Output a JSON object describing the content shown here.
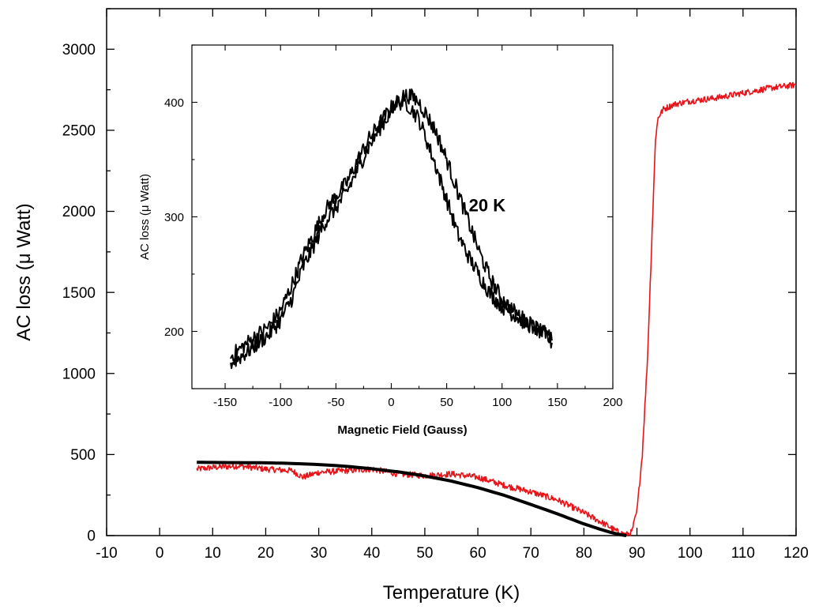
{
  "chart_data": [
    {
      "type": "line",
      "xlabel": "Temperature (K)",
      "ylabel": "AC loss (μ Watt)",
      "xlim": [
        -10,
        120
      ],
      "ylim": [
        0,
        3250
      ],
      "xticks": [
        "-10",
        "0",
        "10",
        "20",
        "30",
        "40",
        "50",
        "60",
        "70",
        "80",
        "90",
        "100",
        "110",
        "120"
      ],
      "yticks": [
        "0",
        "500",
        "1000",
        "1500",
        "2000",
        "2500",
        "3000"
      ],
      "grid": false,
      "series": [
        {
          "color": "#e8141a",
          "x": [
            7,
            10,
            15,
            20,
            25,
            27,
            30,
            35,
            40,
            45,
            50,
            55,
            60,
            65,
            70,
            75,
            80,
            84,
            86,
            87,
            88,
            89,
            90,
            91,
            92,
            93,
            93.5,
            94,
            95,
            97,
            100,
            105,
            110,
            115,
            120
          ],
          "y": [
            410,
            420,
            430,
            410,
            400,
            360,
            390,
            400,
            410,
            380,
            370,
            380,
            360,
            310,
            270,
            220,
            140,
            70,
            30,
            15,
            5,
            20,
            150,
            500,
            1100,
            2000,
            2450,
            2580,
            2630,
            2660,
            2680,
            2700,
            2730,
            2760,
            2780
          ]
        },
        {
          "color": "#000000",
          "x": [
            7,
            10,
            15,
            20,
            25,
            30,
            35,
            40,
            45,
            50,
            55,
            60,
            65,
            70,
            75,
            80,
            83,
            85,
            87,
            88
          ],
          "y": [
            452,
            451,
            450,
            449,
            445,
            438,
            428,
            412,
            393,
            368,
            336,
            296,
            248,
            192,
            134,
            72,
            40,
            20,
            5,
            0
          ]
        }
      ]
    },
    {
      "type": "line",
      "xlabel": "Magnetic Field (Gauss)",
      "ylabel": "AC loss (μ Watt)",
      "annotation": "20 K",
      "xlim": [
        -180,
        200
      ],
      "ylim": [
        150,
        450
      ],
      "xticks": [
        "-150",
        "-100",
        "-50",
        "0",
        "50",
        "100",
        "150",
        "200"
      ],
      "yticks": [
        "200",
        "300",
        "400"
      ],
      "grid": false,
      "series": [
        {
          "color": "#000000",
          "x": [
            -145,
            -130,
            -110,
            -100,
            -90,
            -80,
            -70,
            -60,
            -50,
            -40,
            -30,
            -20,
            -10,
            0,
            5,
            10,
            15,
            20,
            25,
            30,
            40,
            50,
            60,
            70,
            80,
            90,
            100,
            110,
            120,
            130,
            140,
            145
          ],
          "y": [
            178,
            190,
            205,
            218,
            240,
            265,
            285,
            305,
            318,
            330,
            350,
            368,
            382,
            395,
            400,
            400,
            398,
            392,
            385,
            372,
            345,
            315,
            285,
            265,
            248,
            232,
            222,
            215,
            208,
            203,
            196,
            190
          ]
        },
        {
          "color": "#000000",
          "x": [
            -145,
            -130,
            -110,
            -100,
            -90,
            -80,
            -70,
            -60,
            -50,
            -40,
            -30,
            -20,
            -10,
            0,
            5,
            10,
            15,
            20,
            25,
            30,
            40,
            50,
            60,
            70,
            80,
            90,
            100,
            110,
            120,
            130,
            140,
            145
          ],
          "y": [
            172,
            182,
            198,
            210,
            228,
            255,
            275,
            295,
            308,
            322,
            342,
            362,
            378,
            392,
            400,
            405,
            406,
            404,
            400,
            392,
            375,
            350,
            322,
            295,
            268,
            245,
            228,
            218,
            210,
            204,
            198,
            192
          ]
        }
      ]
    }
  ]
}
